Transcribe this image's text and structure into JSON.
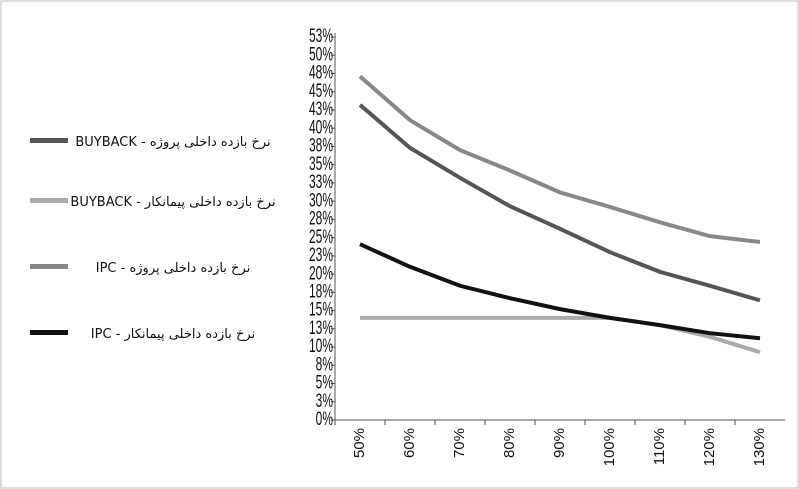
{
  "chart_data": {
    "type": "line",
    "categories": [
      "50%",
      "60%",
      "70%",
      "80%",
      "90%",
      "100%",
      "110%",
      "120%",
      "130%"
    ],
    "series": [
      {
        "name": "نرخ بازده داخلی پروژه - BUYBACK",
        "color": "#555555",
        "values": [
          43.2,
          37.3,
          33.2,
          29.3,
          26.2,
          23,
          20.3,
          18.4,
          16.4
        ]
      },
      {
        "name": "نرخ بازده داخلی پیمانکار - BUYBACK",
        "color": "#aaaaaa",
        "values": [
          14,
          14,
          14,
          14,
          14,
          14,
          13,
          11.4,
          9.3
        ]
      },
      {
        "name": "نرخ بازده داخلی پروژه - IPC",
        "color": "#888888",
        "values": [
          47.1,
          41.1,
          37,
          34.2,
          31.2,
          29.2,
          27.1,
          25.2,
          24.4
        ]
      },
      {
        "name": "نرخ بازده داخلی پیمانکار - IPC",
        "color": "#111111",
        "values": [
          24.1,
          21,
          18.4,
          16.7,
          15.2,
          14,
          13,
          11.9,
          11.2
        ]
      }
    ],
    "ylim": [
      0,
      52.5
    ],
    "yticks": [
      {
        "value": 0,
        "label": "0%"
      },
      {
        "value": 2.5,
        "label": "3%"
      },
      {
        "value": 5,
        "label": "5%"
      },
      {
        "value": 7.5,
        "label": "8%"
      },
      {
        "value": 10,
        "label": "10%"
      },
      {
        "value": 12.5,
        "label": "13%"
      },
      {
        "value": 15,
        "label": "15%"
      },
      {
        "value": 17.5,
        "label": "18%"
      },
      {
        "value": 20,
        "label": "20%"
      },
      {
        "value": 22.5,
        "label": "23%"
      },
      {
        "value": 25,
        "label": "25%"
      },
      {
        "value": 27.5,
        "label": "28%"
      },
      {
        "value": 30,
        "label": "30%"
      },
      {
        "value": 32.5,
        "label": "33%"
      },
      {
        "value": 35,
        "label": "35%"
      },
      {
        "value": 37.5,
        "label": "38%"
      },
      {
        "value": 40,
        "label": "40%"
      },
      {
        "value": 42.5,
        "label": "43%"
      },
      {
        "value": 45,
        "label": "45%"
      },
      {
        "value": 47.5,
        "label": "48%"
      },
      {
        "value": 50,
        "label": "50%"
      },
      {
        "value": 52.5,
        "label": "53%"
      }
    ],
    "legend": "left"
  }
}
